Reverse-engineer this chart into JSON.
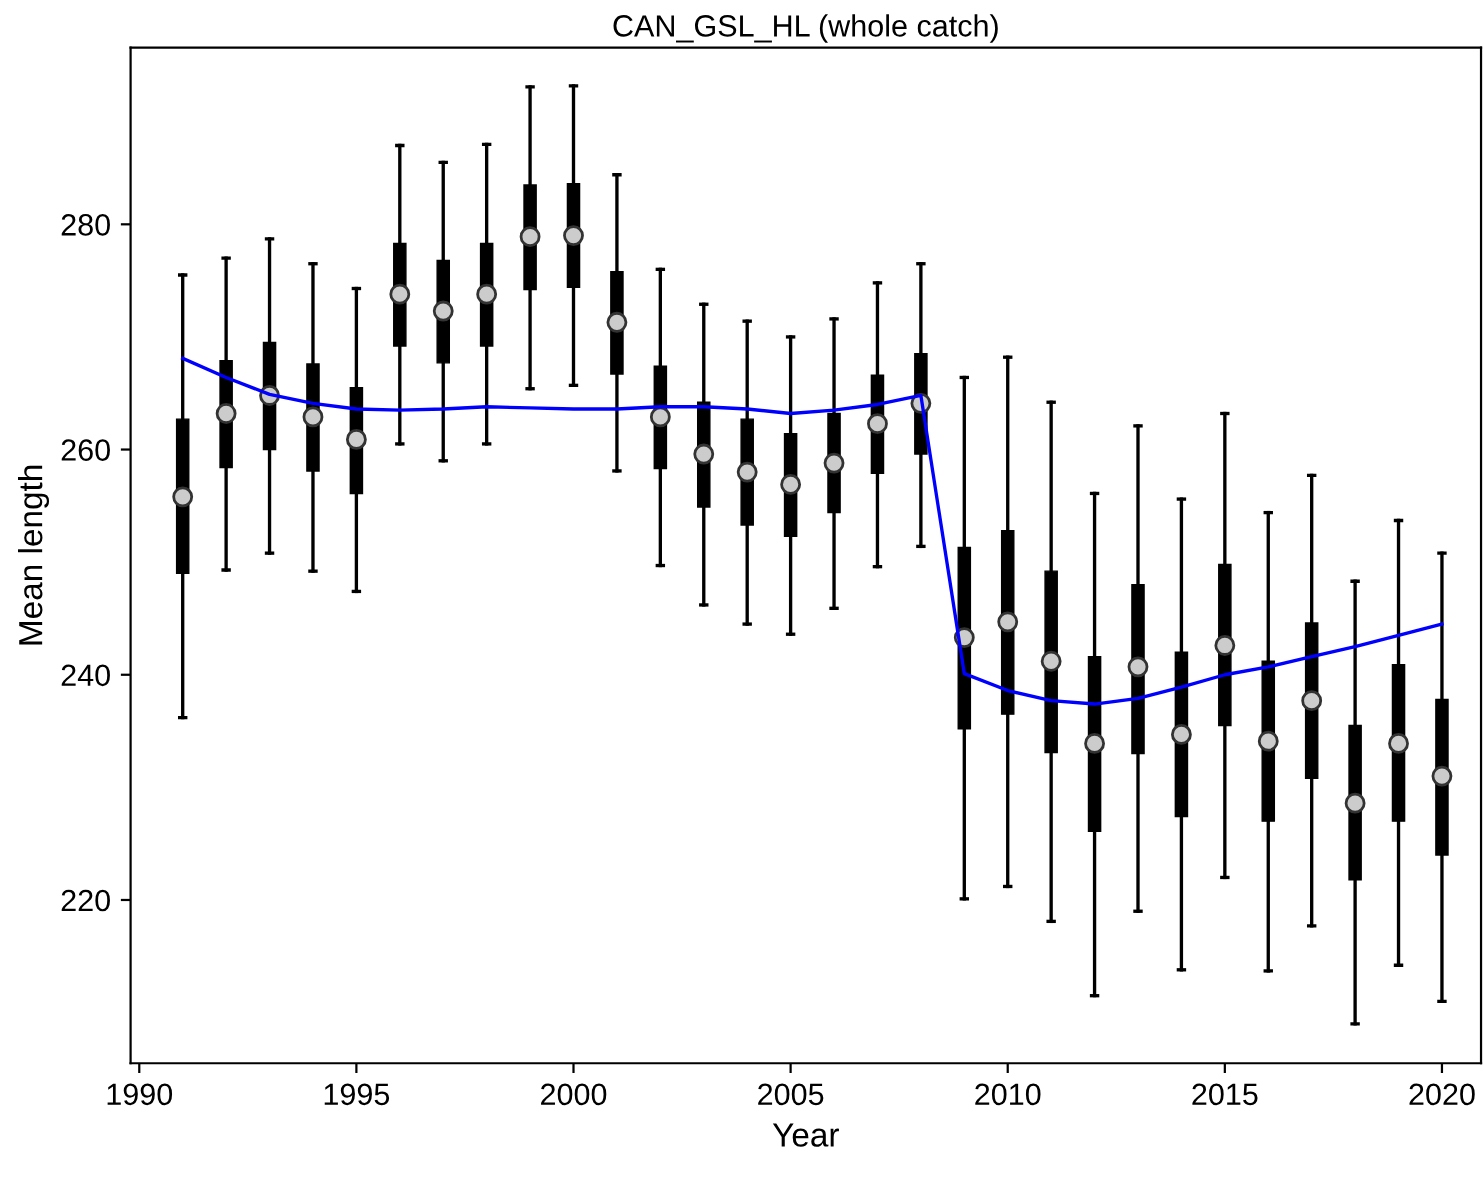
{
  "chart_data": {
    "type": "box",
    "title": "CAN_GSL_HL (whole catch)",
    "xlabel": "Year",
    "ylabel": "Mean length",
    "xlim": [
      1989.8,
      2020.9
    ],
    "xticks": [
      1990,
      1995,
      2000,
      2005,
      2010,
      2015,
      2020
    ],
    "ylim": [
      205.5,
      295.7
    ],
    "yticks": [
      220,
      240,
      260,
      280
    ],
    "grid": false,
    "legend": false,
    "series": [
      {
        "color": "#000000",
        "x": [
          1991,
          1992,
          1993,
          1994,
          1995,
          1996,
          1997,
          1998,
          1999,
          2000,
          2001,
          2002,
          2003,
          2004,
          2005,
          2006,
          2007,
          2008,
          2009,
          2010,
          2011,
          2012,
          2013,
          2014,
          2015,
          2016,
          2017,
          2018,
          2019,
          2020
        ],
        "boxes": [
          {
            "low": 236.2,
            "q1": 249.0,
            "median": 255.8,
            "q3": 262.7,
            "high": 275.5
          },
          {
            "low": 249.3,
            "q1": 258.4,
            "median": 263.2,
            "q3": 267.9,
            "high": 277.0
          },
          {
            "low": 250.8,
            "q1": 260.0,
            "median": 264.8,
            "q3": 269.5,
            "high": 278.7
          },
          {
            "low": 249.2,
            "q1": 258.1,
            "median": 262.9,
            "q3": 267.6,
            "high": 276.5
          },
          {
            "low": 247.4,
            "q1": 256.1,
            "median": 260.9,
            "q3": 265.5,
            "high": 274.3
          },
          {
            "low": 260.5,
            "q1": 269.2,
            "median": 273.8,
            "q3": 278.3,
            "high": 287.0
          },
          {
            "low": 259.0,
            "q1": 267.7,
            "median": 272.3,
            "q3": 276.8,
            "high": 285.5
          },
          {
            "low": 260.5,
            "q1": 269.2,
            "median": 273.8,
            "q3": 278.3,
            "high": 287.1
          },
          {
            "low": 265.4,
            "q1": 274.2,
            "median": 278.9,
            "q3": 283.5,
            "high": 292.2
          },
          {
            "low": 265.7,
            "q1": 274.4,
            "median": 279.0,
            "q3": 283.6,
            "high": 292.3
          },
          {
            "low": 258.1,
            "q1": 266.7,
            "median": 271.3,
            "q3": 275.8,
            "high": 284.4
          },
          {
            "low": 249.7,
            "q1": 258.3,
            "median": 262.9,
            "q3": 267.4,
            "high": 276.0
          },
          {
            "low": 246.2,
            "q1": 254.9,
            "median": 259.6,
            "q3": 264.2,
            "high": 272.9
          },
          {
            "low": 244.5,
            "q1": 253.3,
            "median": 258.0,
            "q3": 262.7,
            "high": 271.4
          },
          {
            "low": 243.6,
            "q1": 252.3,
            "median": 256.9,
            "q3": 261.4,
            "high": 270.0
          },
          {
            "low": 245.9,
            "q1": 254.4,
            "median": 258.8,
            "q3": 263.2,
            "high": 271.6
          },
          {
            "low": 249.6,
            "q1": 257.9,
            "median": 262.3,
            "q3": 266.6,
            "high": 274.8
          },
          {
            "low": 251.4,
            "q1": 259.6,
            "median": 264.1,
            "q3": 268.5,
            "high": 276.5
          },
          {
            "low": 220.1,
            "q1": 235.2,
            "median": 243.3,
            "q3": 251.3,
            "high": 266.4
          },
          {
            "low": 221.2,
            "q1": 236.5,
            "median": 244.7,
            "q3": 252.8,
            "high": 268.2
          },
          {
            "low": 218.1,
            "q1": 233.1,
            "median": 241.2,
            "q3": 249.2,
            "high": 264.2
          },
          {
            "low": 211.5,
            "q1": 226.1,
            "median": 233.9,
            "q3": 241.6,
            "high": 256.1
          },
          {
            "low": 219.0,
            "q1": 233.0,
            "median": 240.7,
            "q3": 248.0,
            "high": 262.1
          },
          {
            "low": 213.8,
            "q1": 227.4,
            "median": 234.7,
            "q3": 242.0,
            "high": 255.6
          },
          {
            "low": 222.0,
            "q1": 235.5,
            "median": 242.6,
            "q3": 249.8,
            "high": 263.2
          },
          {
            "low": 213.7,
            "q1": 227.0,
            "median": 234.1,
            "q3": 241.2,
            "high": 254.4
          },
          {
            "low": 217.7,
            "q1": 230.8,
            "median": 237.7,
            "q3": 244.6,
            "high": 257.7
          },
          {
            "low": 209.0,
            "q1": 221.8,
            "median": 228.6,
            "q3": 235.5,
            "high": 248.3
          },
          {
            "low": 214.2,
            "q1": 227.0,
            "median": 233.9,
            "q3": 240.9,
            "high": 253.7
          },
          {
            "low": 211.0,
            "q1": 224.0,
            "median": 231.0,
            "q3": 237.8,
            "high": 250.8
          }
        ]
      },
      {
        "type": "line",
        "color": "#0000ff",
        "x": [
          1991,
          1992,
          1993,
          1994,
          1995,
          1996,
          1997,
          1998,
          1999,
          2000,
          2001,
          2002,
          2003,
          2004,
          2005,
          2006,
          2007,
          2008,
          2009,
          2010,
          2011,
          2012,
          2013,
          2014,
          2015,
          2016,
          2017,
          2018,
          2019,
          2020
        ],
        "values": [
          268.1,
          266.4,
          264.9,
          264.1,
          263.6,
          263.5,
          263.6,
          263.8,
          263.7,
          263.6,
          263.6,
          263.8,
          263.8,
          263.6,
          263.2,
          263.5,
          264.0,
          264.8,
          240.1,
          238.6,
          237.7,
          237.4,
          237.9,
          238.9,
          240.0,
          240.7,
          241.6,
          242.5,
          243.5,
          244.5
        ]
      }
    ]
  }
}
